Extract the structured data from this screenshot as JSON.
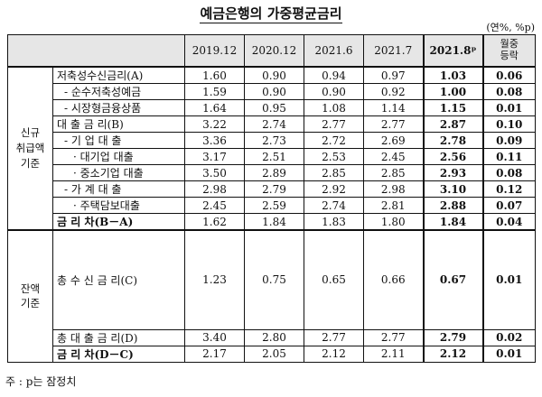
{
  "title": "예금은행의 가중평균금리",
  "unit": "(연%, %p)",
  "note": "주 : p는 잠정치",
  "headers": {
    "c1": "2019.12",
    "c2": "2020.12",
    "c3": "2021.6",
    "c4": "2021.7",
    "c5": "2021.8ᵖ",
    "c6": "월중\n등락"
  },
  "groups": {
    "new": "신규\n취급액\n기준",
    "balance": "잔액\n기준"
  },
  "rows": [
    {
      "label": "저축성수신금리(A)",
      "v": [
        "1.60",
        "0.90",
        "0.94",
        "0.97",
        "1.03",
        "0.06"
      ]
    },
    {
      "label": "- 순수저축성예금",
      "v": [
        "1.59",
        "0.90",
        "0.90",
        "0.92",
        "1.00",
        "0.08"
      ]
    },
    {
      "label": "- 시장형금융상품",
      "v": [
        "1.64",
        "0.95",
        "1.08",
        "1.14",
        "1.15",
        "0.01"
      ]
    },
    {
      "label": "대 출 금 리(B)",
      "v": [
        "3.22",
        "2.74",
        "2.77",
        "2.77",
        "2.87",
        "0.10"
      ]
    },
    {
      "label": "- 기 업 대 출",
      "v": [
        "3.36",
        "2.73",
        "2.72",
        "2.69",
        "2.78",
        "0.09"
      ]
    },
    {
      "label": "· 대기업 대출",
      "v": [
        "3.17",
        "2.51",
        "2.53",
        "2.45",
        "2.56",
        "0.11"
      ]
    },
    {
      "label": "· 중소기업 대출",
      "v": [
        "3.50",
        "2.89",
        "2.85",
        "2.85",
        "2.93",
        "0.08"
      ]
    },
    {
      "label": "- 가 계 대 출",
      "v": [
        "2.98",
        "2.79",
        "2.92",
        "2.98",
        "3.10",
        "0.12"
      ]
    },
    {
      "label": "· 주택담보대출",
      "v": [
        "2.45",
        "2.59",
        "2.74",
        "2.81",
        "2.88",
        "0.07"
      ]
    },
    {
      "label": "금 리 차(B－A)",
      "v": [
        "1.62",
        "1.84",
        "1.83",
        "1.80",
        "1.84",
        "0.04"
      ]
    },
    {
      "label": "총 수 신 금 리(C)",
      "v": [
        "1.23",
        "0.75",
        "0.65",
        "0.66",
        "0.67",
        "0.01"
      ]
    },
    {
      "label": "총 대 출 금 리(D)",
      "v": [
        "3.40",
        "2.80",
        "2.77",
        "2.77",
        "2.79",
        "0.02"
      ]
    },
    {
      "label": "금 리 차(D－C)",
      "v": [
        "2.17",
        "2.05",
        "2.12",
        "2.11",
        "2.12",
        "0.01"
      ]
    }
  ]
}
